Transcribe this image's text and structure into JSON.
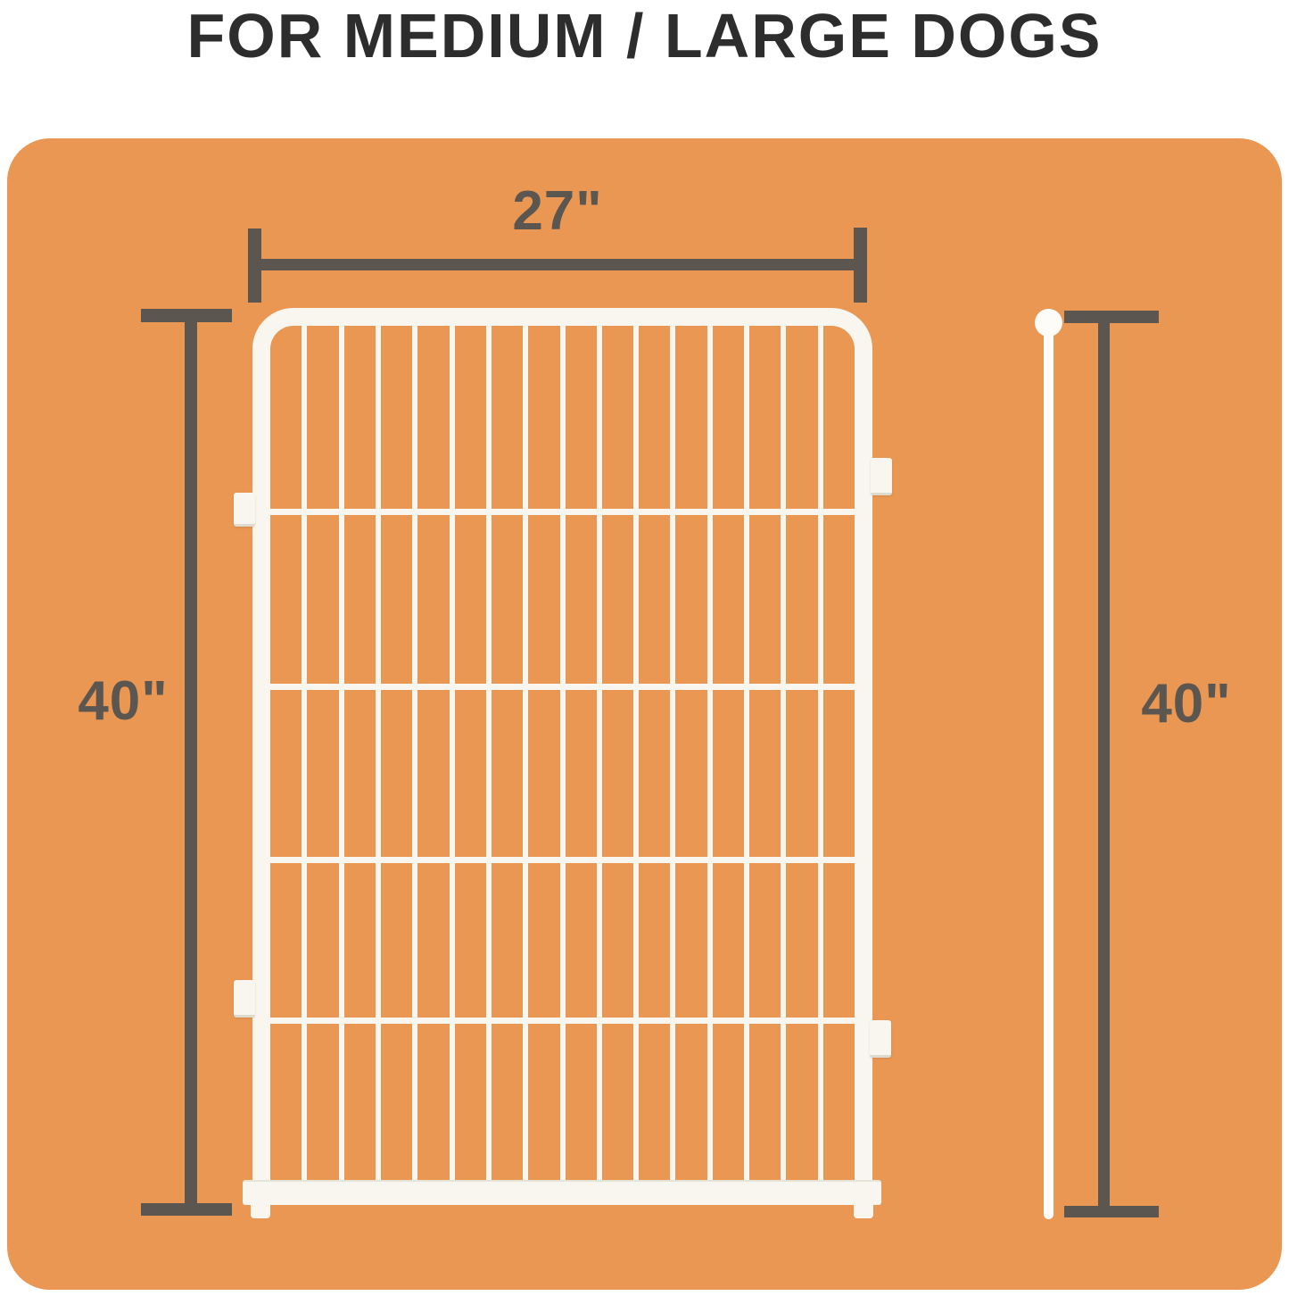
{
  "title": "FOR MEDIUM / LARGE DOGS",
  "diagram": {
    "width_dimension": {
      "label": "27\""
    },
    "left_height_dimension": {
      "label": "40\""
    },
    "right_height_dimension": {
      "label": "40\""
    },
    "fence": {
      "vertical_bar_count": 15,
      "horizontal_wire_count": 4
    }
  },
  "colors": {
    "background": "#FFFFFF",
    "board_orange": "#E99752",
    "fence_white": "#F8F6EF",
    "dimension_gray": "#5C5650",
    "title_text": "#2D2D2D"
  }
}
